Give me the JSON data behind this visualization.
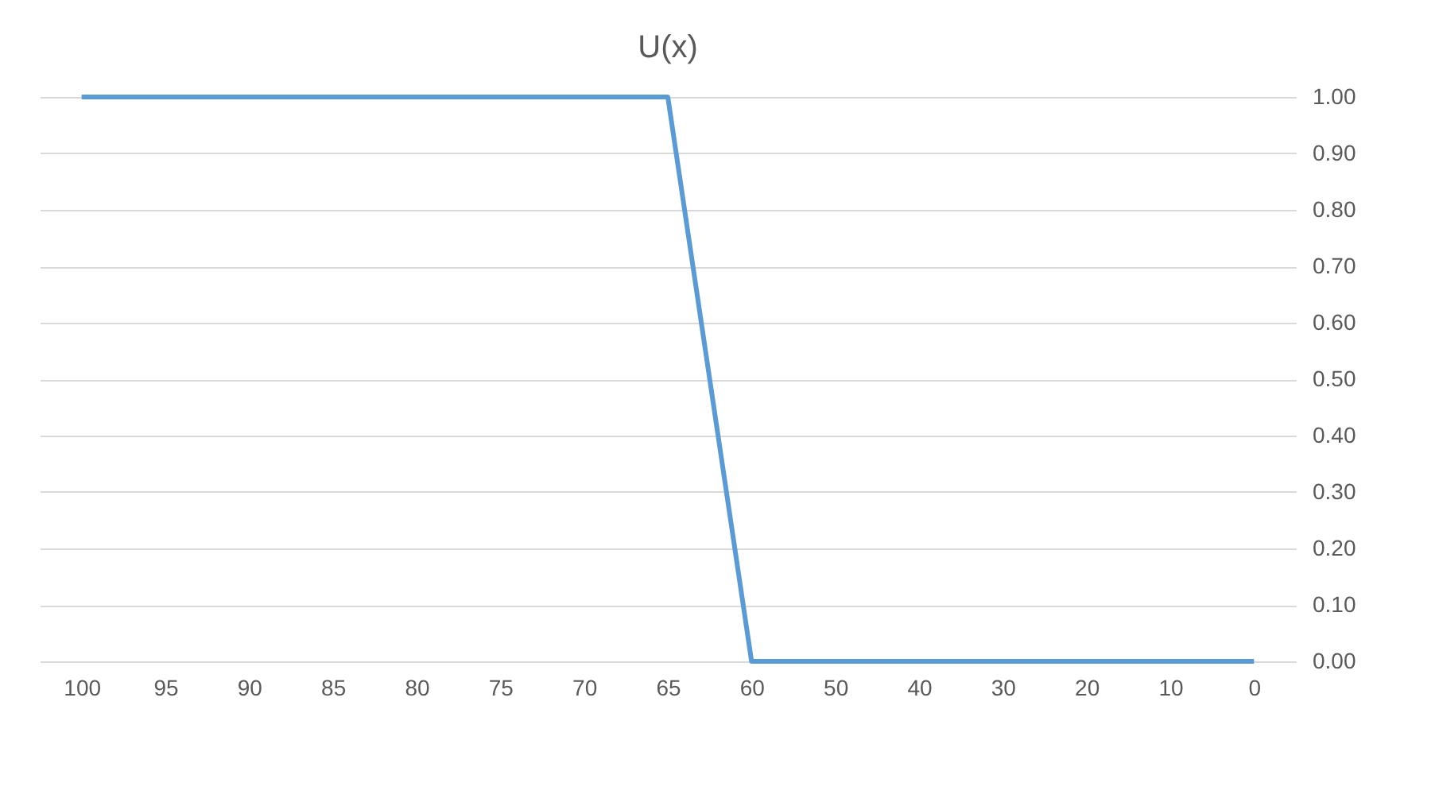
{
  "chart_data": {
    "type": "line",
    "title": "U(x)",
    "categories": [
      "100",
      "95",
      "90",
      "85",
      "80",
      "75",
      "70",
      "65",
      "60",
      "50",
      "40",
      "30",
      "20",
      "10",
      "0"
    ],
    "series": [
      {
        "color": "#5b9bd5",
        "values": [
          1,
          1,
          1,
          1,
          1,
          1,
          1,
          1,
          0,
          0,
          0,
          0,
          0,
          0,
          0
        ]
      }
    ],
    "ylim": [
      0,
      1
    ],
    "yticks": [
      {
        "value": 0,
        "label": "0.00"
      },
      {
        "value": 0.1,
        "label": "0.10"
      },
      {
        "value": 0.2,
        "label": "0.20"
      },
      {
        "value": 0.3,
        "label": "0.30"
      },
      {
        "value": 0.4,
        "label": "0.40"
      },
      {
        "value": 0.5,
        "label": "0.50"
      },
      {
        "value": 0.6,
        "label": "0.60"
      },
      {
        "value": 0.7,
        "label": "0.70"
      },
      {
        "value": 0.8,
        "label": "0.80"
      },
      {
        "value": 0.9,
        "label": "0.90"
      },
      {
        "value": 1,
        "label": "1.00"
      }
    ],
    "grid": "y",
    "legend": false,
    "marker": "none",
    "line_style": "solid"
  }
}
